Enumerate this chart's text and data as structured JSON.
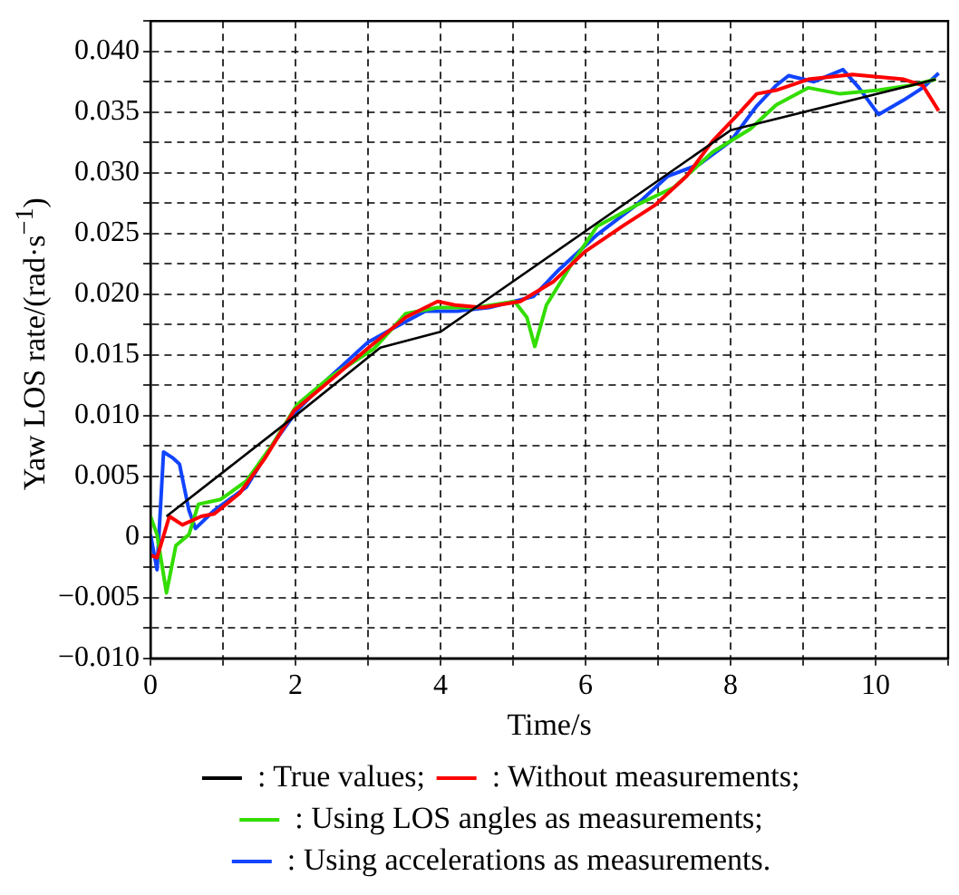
{
  "chart_data": {
    "type": "line",
    "xlabel": "Time/s",
    "ylabel": "Yaw LOS rate/(rad·s$^{−1}$)",
    "xlim": [
      0,
      11
    ],
    "ylim": [
      -0.01,
      0.0425
    ],
    "xticks": [
      0,
      {
        "value": 1,
        "label": null
      },
      2,
      {
        "value": 3,
        "label": null
      },
      4,
      {
        "value": 5,
        "label": null
      },
      6,
      {
        "value": 7,
        "label": null
      },
      8,
      {
        "value": 9,
        "label": null
      },
      10,
      {
        "value": 11,
        "label": null
      }
    ],
    "yticks": [
      {
        "value": -0.01,
        "label": "−0.010"
      },
      {
        "value": -0.0075,
        "label": null
      },
      {
        "value": -0.005,
        "label": "−0.005"
      },
      {
        "value": -0.0025,
        "label": null
      },
      0,
      {
        "value": 0.0025,
        "label": null
      },
      {
        "value": 0.005,
        "label": "0.005"
      },
      {
        "value": 0.0075,
        "label": null
      },
      {
        "value": 0.01,
        "label": "0.010"
      },
      {
        "value": 0.0125,
        "label": null
      },
      {
        "value": 0.015,
        "label": "0.015"
      },
      {
        "value": 0.0175,
        "label": null
      },
      {
        "value": 0.02,
        "label": "0.020"
      },
      {
        "value": 0.0225,
        "label": null
      },
      {
        "value": 0.025,
        "label": "0.025"
      },
      {
        "value": 0.0275,
        "label": null
      },
      {
        "value": 0.03,
        "label": "0.030"
      },
      {
        "value": 0.0325,
        "label": null
      },
      {
        "value": 0.035,
        "label": "0.035"
      },
      {
        "value": 0.0375,
        "label": null
      },
      {
        "value": 0.04,
        "label": "0.040"
      },
      {
        "value": 0.0425,
        "label": null
      }
    ],
    "grid": true,
    "legend": "bottom",
    "line_style": "solid",
    "marker": "none",
    "series": [
      {
        "name": ": True values;",
        "color": "#000000",
        "x": [
          0.22,
          1.98,
          3.17,
          4.0,
          8.0,
          10.83
        ],
        "values": [
          0.0017,
          0.0099,
          0.0156,
          0.0169,
          0.0335,
          0.0377
        ]
      },
      {
        "name": ": Without measurements;",
        "color": "#ff0000",
        "x": [
          0,
          0.09,
          0.26,
          0.44,
          0.7,
          0.88,
          1.23,
          1.58,
          1.98,
          2.46,
          2.99,
          3.52,
          3.96,
          4.2,
          4.58,
          5.1,
          5.55,
          5.99,
          6.51,
          6.95,
          7.39,
          7.75,
          8.1,
          8.36,
          8.63,
          9.07,
          9.68,
          10.39,
          10.65,
          10.87
        ],
        "values": [
          -0.0015,
          -0.0017,
          0.0017,
          0.001,
          0.0017,
          0.0019,
          0.0036,
          0.0065,
          0.0104,
          0.0128,
          0.0155,
          0.0181,
          0.0194,
          0.0191,
          0.0189,
          0.0194,
          0.021,
          0.0235,
          0.0256,
          0.0273,
          0.0297,
          0.0326,
          0.0348,
          0.0365,
          0.0368,
          0.0377,
          0.0381,
          0.0377,
          0.0372,
          0.0351
        ]
      },
      {
        "name": ": Using LOS angles as measurements;",
        "color": "#33dd00",
        "x": [
          0,
          0.09,
          0.22,
          0.35,
          0.53,
          0.66,
          0.97,
          1.32,
          1.67,
          2.02,
          2.46,
          3.08,
          3.52,
          3.96,
          4.49,
          5.02,
          5.19,
          5.3,
          5.46,
          5.81,
          6.16,
          6.69,
          7.22,
          7.75,
          8.27,
          8.63,
          9.07,
          9.51,
          10.04,
          10.48,
          10.83
        ],
        "values": [
          0.0017,
          0.0002,
          -0.0046,
          -0.0007,
          0.0002,
          0.0027,
          0.0031,
          0.0046,
          0.0075,
          0.0109,
          0.0131,
          0.0155,
          0.0184,
          0.0189,
          0.0189,
          0.0194,
          0.0181,
          0.0157,
          0.0191,
          0.0225,
          0.0256,
          0.0273,
          0.0288,
          0.0317,
          0.0336,
          0.0356,
          0.037,
          0.0365,
          0.0368,
          0.0372,
          0.0377
        ]
      },
      {
        "name": ": Using accelerations as measurements.",
        "color": "#1144ff",
        "x": [
          0,
          0.09,
          0.18,
          0.31,
          0.4,
          0.53,
          0.62,
          0.88,
          1.32,
          1.67,
          2.02,
          2.46,
          2.99,
          3.35,
          3.79,
          4.23,
          4.67,
          5.28,
          5.63,
          6.16,
          6.69,
          7.13,
          7.57,
          8.0,
          8.36,
          8.63,
          8.8,
          9.15,
          9.55,
          9.77,
          10.04,
          10.39,
          10.65,
          10.87
        ],
        "values": [
          0.0002,
          -0.0027,
          0.007,
          0.0065,
          0.006,
          0.0022,
          0.0007,
          0.0022,
          0.0041,
          0.0075,
          0.0104,
          0.0131,
          0.016,
          0.0172,
          0.0186,
          0.0186,
          0.0189,
          0.0198,
          0.022,
          0.0249,
          0.0273,
          0.0297,
          0.0307,
          0.0326,
          0.0355,
          0.0372,
          0.038,
          0.0375,
          0.0385,
          0.037,
          0.0348,
          0.036,
          0.037,
          0.0382
        ]
      }
    ]
  }
}
